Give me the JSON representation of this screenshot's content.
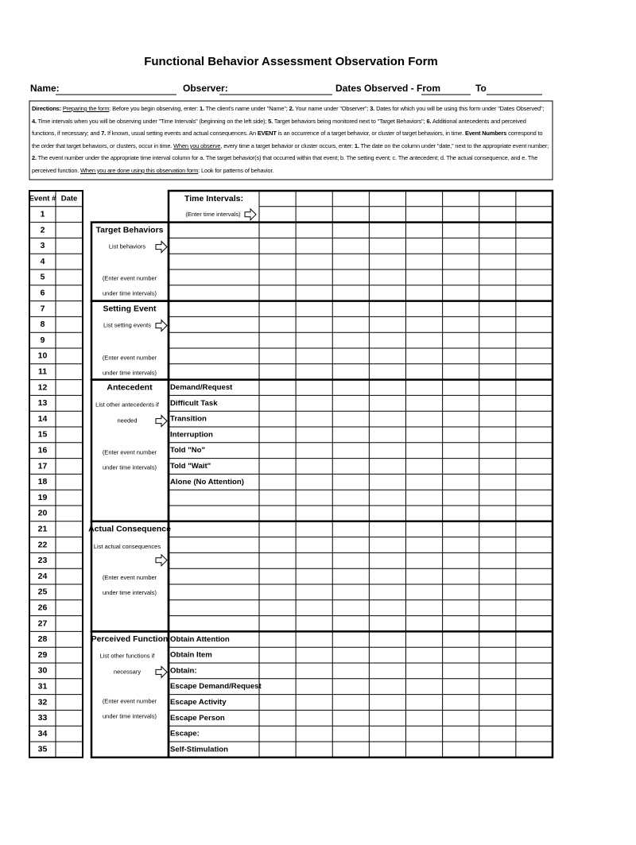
{
  "header": {
    "title": "Functional Behavior Assessment Observation Form",
    "fields": {
      "name": "Name:",
      "observer": "Observer:",
      "dates_from": "Dates Observed - From",
      "to": "To"
    }
  },
  "directions": [
    {
      "text": "Directions:",
      "style": "b"
    },
    {
      "text": " "
    },
    {
      "text": "Preparing the form",
      "style": "u"
    },
    {
      "text": ": Before you begin observing, enter: "
    },
    {
      "text": "1.",
      "style": "b"
    },
    {
      "text": " The client's name under \"Name\"; "
    },
    {
      "text": "2.",
      "style": "b"
    },
    {
      "text": " Your name under \"Observer\"; "
    },
    {
      "text": "3.",
      "style": "b"
    },
    {
      "text": " Dates for which you will be using this form under \"Dates Observed\"; "
    },
    {
      "text": "4.",
      "style": "b"
    },
    {
      "text": " Time intervals when you will be observing under \"Time Intervals\" (beginning on the left side); "
    },
    {
      "text": "5.",
      "style": "b"
    },
    {
      "text": " Target behaviors being monitored next to \"Target Behaviors\"; "
    },
    {
      "text": "6.",
      "style": "b"
    },
    {
      "text": " Additional antecedents and perceived functions, if necessary; and "
    },
    {
      "text": "7.",
      "style": "b"
    },
    {
      "text": " If known, usual setting events and actual consequences.  An "
    },
    {
      "text": "EVENT",
      "style": "b"
    },
    {
      "text": " is an occurrence of a target behavior, or cluster of target behaviors, in time.  "
    },
    {
      "text": "Event Numbers",
      "style": "b"
    },
    {
      "text": " correspond to the order that target behaviors, or clusters, occur in time.  "
    },
    {
      "text": "When you observe",
      "style": "u"
    },
    {
      "text": ", every time a target behavior or cluster occurs, enter: "
    },
    {
      "text": "1.",
      "style": "b"
    },
    {
      "text": " The date on the column under \"date,\" next to the appropriate event number; "
    },
    {
      "text": "2.",
      "style": "b"
    },
    {
      "text": " The event number under the appropriate time interval column for a. The target behavior(s) that occurred within that event; b. The setting event; c. The antecedent; d. The actual consequence, and e. The perceived function. "
    },
    {
      "text": "When you are done using this observation form",
      "style": "u"
    },
    {
      "text": ": Look for patterns of behavior."
    }
  ],
  "table": {
    "event_header": "Event #",
    "date_header": "Date",
    "events": [
      "1",
      "2",
      "3",
      "4",
      "5",
      "6",
      "7",
      "8",
      "9",
      "10",
      "11",
      "12",
      "13",
      "14",
      "15",
      "16",
      "17",
      "18",
      "19",
      "20",
      "21",
      "22",
      "23",
      "24",
      "25",
      "26",
      "27",
      "28",
      "29",
      "30",
      "31",
      "32",
      "33",
      "34",
      "35"
    ],
    "time_intervals": "Time Intervals:",
    "time_intervals_hint": "(Enter time intervals)",
    "sections": [
      {
        "title": "Target Behaviors",
        "hint": [
          "List behaviors"
        ],
        "note": [
          "(Enter event number",
          "under time intervals)"
        ],
        "items": []
      },
      {
        "title": "Setting Event",
        "hint": [
          "List setting events"
        ],
        "note": [
          "(Enter event number",
          "under time intervals)"
        ],
        "items": []
      },
      {
        "title": "Antecedent",
        "hint": [
          "List other antecedents if",
          "needed"
        ],
        "note": [
          "(Enter event number",
          "under time intervals)"
        ],
        "items": [
          "Demand/Request",
          "Difficult Task",
          "Transition",
          "Interruption",
          "Told \"No\"",
          "Told \"Wait\"",
          "Alone (No Attention)"
        ]
      },
      {
        "title": "Actual Consequence",
        "hint": [
          "List actual consequences"
        ],
        "note": [
          "(Enter event number",
          "under time intervals)"
        ],
        "items": []
      },
      {
        "title": "Perceived Function",
        "hint": [
          "List other functions if",
          "necessary"
        ],
        "note": [
          "(Enter event number",
          "under time intervals)"
        ],
        "items": [
          "Obtain Attention",
          "Obtain Item",
          "Obtain:",
          "Escape Demand/Request",
          "Escape Activity",
          "Escape Person",
          "Escape:",
          "Self-Stimulation"
        ]
      }
    ]
  }
}
